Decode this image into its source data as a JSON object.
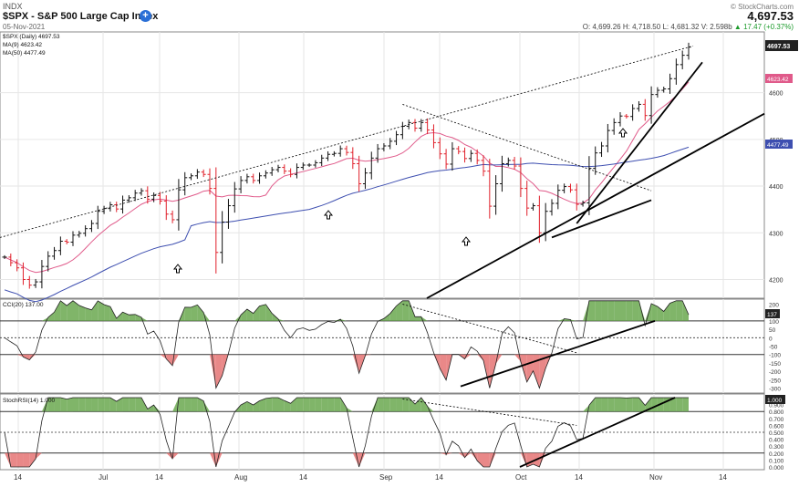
{
  "header": {
    "exchange": "INDX",
    "title": "$SPX - S&P 500 Large Cap Index",
    "date": "05-Nov-2021",
    "copyright": "© StockCharts.com",
    "last_price": "4,697.53",
    "ohlc": {
      "open": "O: 4,699.26",
      "high": "H: 4,718.50",
      "low": "L: 4,681.32",
      "volume": "V: 2.598b",
      "change": "▲ 17.47 (+0.37%)"
    }
  },
  "legends": {
    "price": "$SPX (Daily) 4697.53",
    "ma9": "MA(9) 4623.42",
    "ma50": "MA(50) 4477.49",
    "cci": "CCI(20) 137.00",
    "stochrsi": "StochRSI(14) 1.000"
  },
  "right_badges": {
    "price": "4697.53",
    "ma9": "4623.42",
    "ma50": "4477.49",
    "cci": "137",
    "stochrsi": "1.000"
  },
  "colors": {
    "ma9": "#e05a8a",
    "ma50": "#3e4fb0",
    "up_bar": "#111111",
    "down_bar": "#e0202a",
    "osc_fill_pos": "#6aa84f",
    "osc_fill_neg": "#e57373",
    "trendline": "#000000"
  },
  "chart_data": [
    {
      "type": "ohlc",
      "title": "$SPX - S&P 500 Large Cap Index",
      "x_labels": [
        "14",
        "Jul",
        "14",
        "Aug",
        "14",
        "Sep",
        "14",
        "Oct",
        "14",
        "Nov",
        "14"
      ],
      "y_ticks": [
        4200,
        4300,
        4400,
        4500,
        4600
      ],
      "ylim": [
        4160,
        4730
      ],
      "series": [
        {
          "name": "$SPX (Daily)",
          "last": 4697.53,
          "closes": [
            4248,
            4236,
            4225,
            4200,
            4188,
            4195,
            4228,
            4250,
            4262,
            4282,
            4280,
            4295,
            4299,
            4309,
            4320,
            4346,
            4352,
            4360,
            4351,
            4370,
            4375,
            4385,
            4390,
            4372,
            4380,
            4368,
            4340,
            4328,
            4392,
            4418,
            4422,
            4430,
            4425,
            4395,
            4258,
            4323,
            4358,
            4394,
            4412,
            4420,
            4412,
            4422,
            4428,
            4435,
            4440,
            4432,
            4425,
            4440,
            4445,
            4445,
            4450,
            4460,
            4468,
            4470,
            4480,
            4472,
            4448,
            4405,
            4428,
            4460,
            4480,
            4486,
            4496,
            4510,
            4528,
            4536,
            4524,
            4536,
            4520,
            4493,
            4469,
            4447,
            4480,
            4474,
            4459,
            4470,
            4455,
            4432,
            4357,
            4405,
            4448,
            4455,
            4443,
            4395,
            4353,
            4358,
            4300,
            4346,
            4363,
            4391,
            4399,
            4392,
            4361,
            4364,
            4438,
            4471,
            4486,
            4519,
            4536,
            4550,
            4549,
            4566,
            4575,
            4551,
            4596,
            4605,
            4608,
            4630,
            4660,
            4680,
            4697.53
          ]
        },
        {
          "name": "MA(9)",
          "last": 4623.42
        },
        {
          "name": "MA(50)",
          "last": 4477.49
        }
      ],
      "annotations": [
        "up-arrow marks at local lows",
        "rising trendlines from Oct low",
        "upper channel line from June highs",
        "falling trendline from Sep high"
      ]
    },
    {
      "type": "line",
      "title": "CCI(20)",
      "y_ticks": [
        200,
        150,
        100,
        50,
        0,
        -50,
        -100,
        -150,
        -200,
        -250,
        -300
      ],
      "ylim": [
        -330,
        230
      ],
      "reference_lines": [
        100,
        0,
        -100
      ],
      "last": 137
    },
    {
      "type": "line",
      "title": "StochRSI(14)",
      "y_ticks": [
        1.0,
        0.9,
        0.8,
        0.7,
        0.6,
        0.5,
        0.4,
        0.3,
        0.2,
        0.1,
        0.0
      ],
      "ylim": [
        0,
        1
      ],
      "reference_lines": [
        0.8,
        0.5,
        0.2
      ],
      "last": 1.0
    }
  ]
}
